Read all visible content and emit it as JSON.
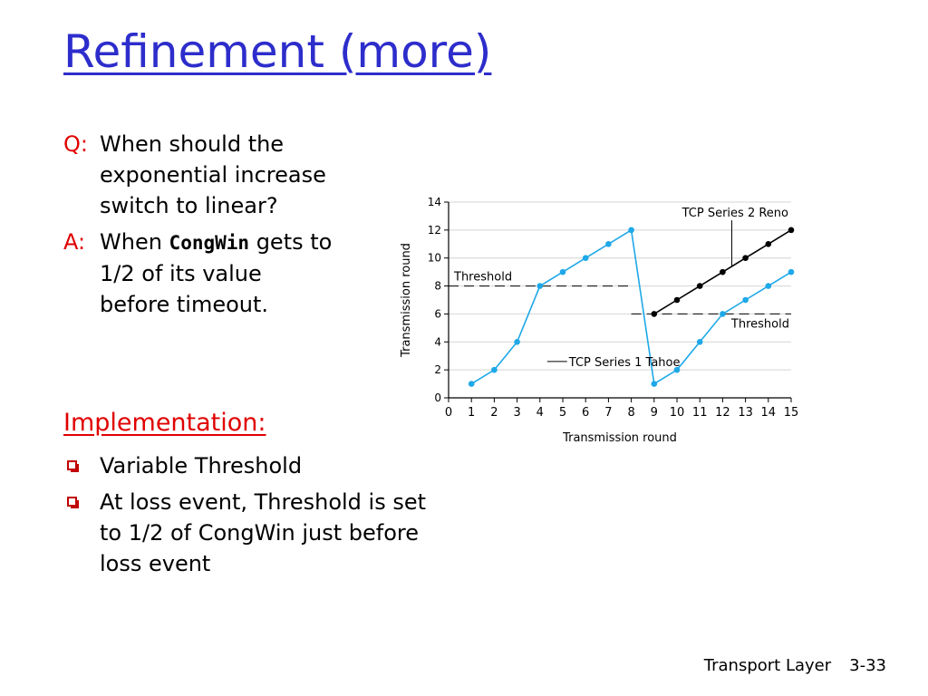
{
  "slide": {
    "title": "Refinement (more)",
    "q_tag": "Q:",
    "q_text": "When should the exponential increase switch to linear?",
    "a_tag": "A:",
    "a_before": "When ",
    "a_code": "CongWin",
    "a_after": " gets to 1/2 of its value before timeout.",
    "impl_heading": "Implementation:",
    "bullets": [
      "Variable Threshold",
      "At loss event, Threshold is set to 1/2 of CongWin just before loss event"
    ],
    "footer_section": "Transport Layer",
    "footer_page": "3-33"
  },
  "chart_data": {
    "type": "line",
    "xlabel": "Transmission round",
    "ylabel": "Transmission round",
    "x_ticks": [
      0,
      1,
      2,
      3,
      4,
      5,
      6,
      7,
      8,
      9,
      10,
      11,
      12,
      13,
      14,
      15
    ],
    "y_ticks": [
      0,
      2,
      4,
      6,
      8,
      10,
      12,
      14
    ],
    "xlim": [
      0,
      15
    ],
    "ylim": [
      0,
      14
    ],
    "series": [
      {
        "name": "TCP Series 1 Tahoe",
        "color": "#1ea8e8",
        "x": [
          1,
          2,
          3,
          4,
          5,
          6,
          7,
          8,
          9,
          10,
          11,
          12,
          13,
          14,
          15
        ],
        "y": [
          1,
          2,
          4,
          8,
          9,
          10,
          11,
          12,
          1,
          2,
          4,
          6,
          7,
          8,
          9
        ]
      },
      {
        "name": "TCP Series 2 Reno",
        "color": "#000000",
        "x": [
          9,
          10,
          11,
          12,
          13,
          14,
          15
        ],
        "y": [
          6,
          7,
          8,
          9,
          10,
          11,
          12
        ]
      }
    ],
    "thresholds": [
      {
        "label": "Threshold",
        "value": 8,
        "x_range": [
          0,
          8
        ]
      },
      {
        "label": "Threshold",
        "value": 6,
        "x_range": [
          8,
          15
        ]
      }
    ]
  }
}
